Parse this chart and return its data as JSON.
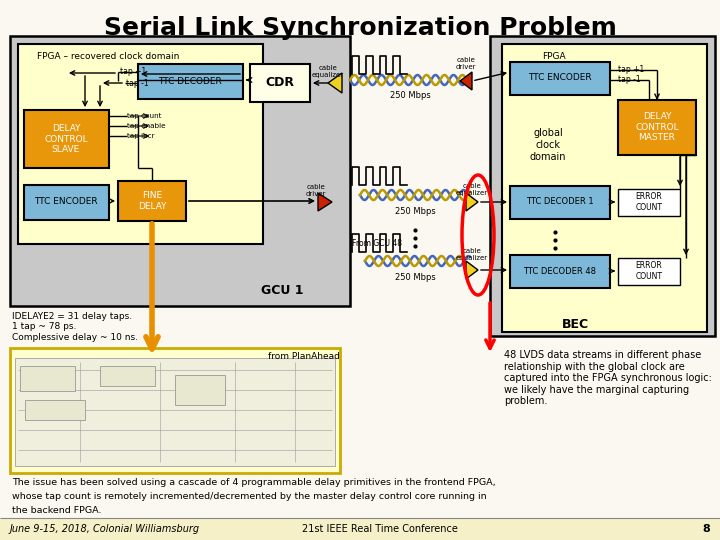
{
  "title": "Serial Link Synchronization Problem",
  "title_fontsize": 18,
  "bg_color": "#faf8f0",
  "footer_left": "June 9-15, 2018, Colonial Williamsburg",
  "footer_center": "21st IEEE Real Time Conference",
  "footer_num": "8",
  "body_text": "48 LVDS data streams in different phase\nrelationship with the global clock are\ncaptured into the FPGA synchronous logic:\nwe likely have the marginal capturing\nproblem.",
  "bottom_text1": "The issue has been solved using a cascade of 4 programmable delay primitives in the frontend FPGA,",
  "bottom_text2": "whose tap count is remotely incremented/decremented by the master delay control core running in",
  "bottom_text3": "the backend FPGA.",
  "idelaye_text": "IDELAYE2 = 31 delay taps.\n1 tap ~ 78 ps.\nComplessive delay ~ 10 ns.",
  "plan_ahead_text": "from PlanAhead",
  "gcu1_label": "GCU 1",
  "bec_label": "BEC",
  "fpga_left_label": "FPGA – recovered clock domain",
  "fpga_right_label": "FPGA",
  "global_clock_label": "global\nclock\ndomain",
  "col_yellow": "#ffffcc",
  "col_blue": "#7db8d8",
  "col_orange": "#e8960a",
  "col_gray": "#c8c8c8",
  "col_lightyellow": "#ffffe8",
  "col_white": "#ffffff",
  "col_red": "#cc2200",
  "col_orange_arrow": "#e89000",
  "col_yellow_tri": "#f0d020",
  "col_cable_blue": "#4466bb",
  "col_cable_gold": "#bb9900"
}
